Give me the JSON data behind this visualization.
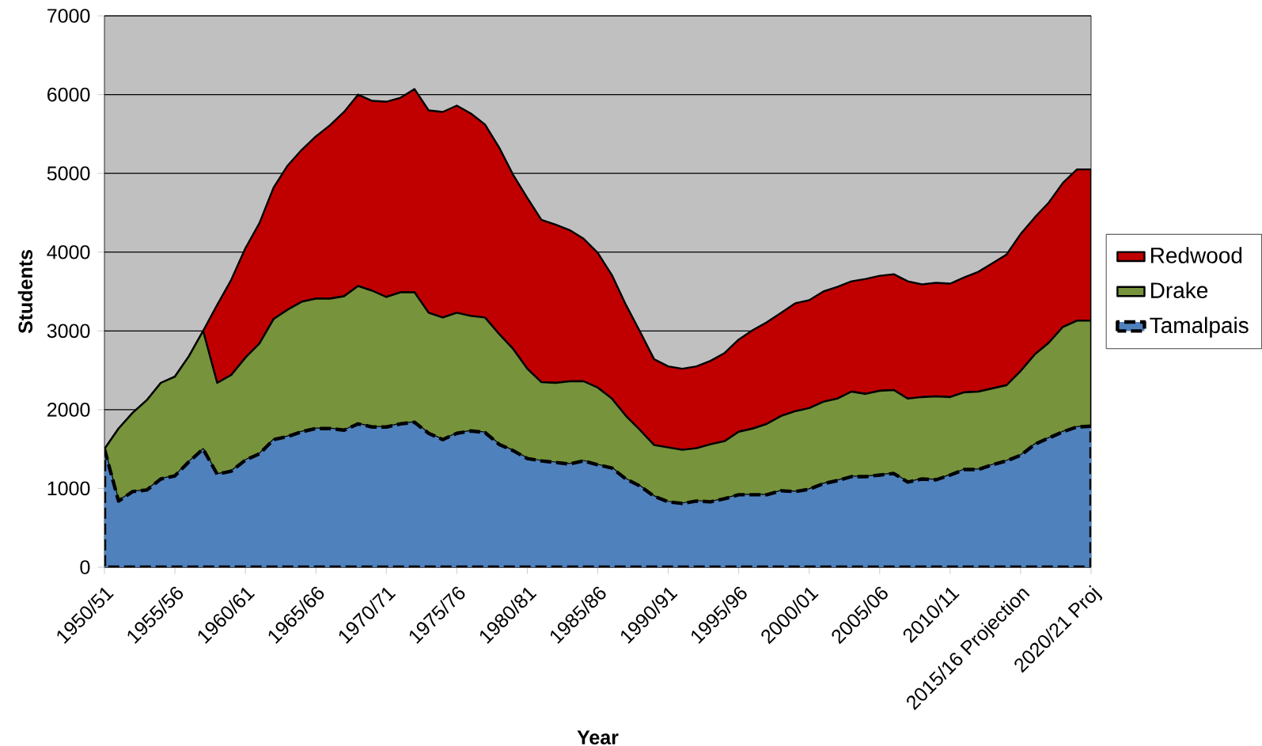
{
  "chart_data": {
    "type": "area",
    "xlabel": "Year",
    "ylabel": "Students",
    "categories": [
      "1950/51",
      null,
      null,
      null,
      null,
      "1955/56",
      null,
      null,
      null,
      null,
      "1960/61",
      null,
      null,
      null,
      null,
      "1965/66",
      null,
      null,
      null,
      null,
      "1970/71",
      null,
      null,
      null,
      null,
      "1975/76",
      null,
      null,
      null,
      null,
      "1980/81",
      null,
      null,
      null,
      null,
      "1985/86",
      null,
      null,
      null,
      null,
      "1990/91",
      null,
      null,
      null,
      null,
      "1995/96",
      null,
      null,
      null,
      null,
      "2000/01",
      null,
      null,
      null,
      null,
      "2005/06",
      null,
      null,
      null,
      null,
      "2010/11",
      null,
      null,
      null,
      null,
      "2015/16 Projection",
      null,
      null,
      null,
      null,
      "2020/21 Proj"
    ],
    "stacked": true,
    "ylim": [
      0,
      7000
    ],
    "yticks": [
      0,
      1000,
      2000,
      3000,
      4000,
      5000,
      6000,
      7000
    ],
    "grid": "y",
    "legend": "right",
    "series": [
      {
        "name": "Tamalpais",
        "color": "#4f81bd",
        "line_style": "dashed",
        "values": [
          1500,
          840,
          960,
          980,
          1120,
          1160,
          1340,
          1500,
          1180,
          1220,
          1360,
          1440,
          1620,
          1660,
          1720,
          1760,
          1760,
          1740,
          1820,
          1780,
          1780,
          1820,
          1840,
          1700,
          1620,
          1700,
          1730,
          1710,
          1560,
          1480,
          1380,
          1350,
          1330,
          1310,
          1350,
          1300,
          1260,
          1120,
          1030,
          900,
          830,
          810,
          840,
          830,
          870,
          920,
          920,
          920,
          970,
          960,
          990,
          1060,
          1100,
          1150,
          1150,
          1170,
          1190,
          1080,
          1120,
          1110,
          1170,
          1240,
          1240,
          1300,
          1350,
          1420,
          1560,
          1640,
          1720,
          1780,
          1790
        ]
      },
      {
        "name": "Drake",
        "color": "#77933c",
        "line_style": "solid",
        "values": [
          0,
          920,
          1000,
          1140,
          1220,
          1260,
          1340,
          1500,
          1160,
          1220,
          1300,
          1400,
          1530,
          1610,
          1650,
          1650,
          1650,
          1700,
          1750,
          1730,
          1650,
          1670,
          1650,
          1530,
          1550,
          1530,
          1460,
          1460,
          1400,
          1290,
          1140,
          1000,
          1010,
          1050,
          1010,
          980,
          880,
          800,
          710,
          650,
          690,
          680,
          670,
          730,
          730,
          800,
          840,
          900,
          950,
          1020,
          1030,
          1040,
          1040,
          1080,
          1050,
          1070,
          1060,
          1060,
          1040,
          1060,
          990,
          980,
          990,
          970,
          960,
          1070,
          1140,
          1210,
          1330,
          1350,
          1340
        ]
      },
      {
        "name": "Redwood",
        "color": "#c00000",
        "line_style": "solid",
        "values": [
          0,
          0,
          0,
          0,
          0,
          0,
          0,
          0,
          990,
          1210,
          1390,
          1530,
          1670,
          1830,
          1930,
          2060,
          2200,
          2340,
          2430,
          2410,
          2480,
          2470,
          2580,
          2570,
          2610,
          2630,
          2570,
          2450,
          2370,
          2210,
          2170,
          2060,
          2010,
          1920,
          1810,
          1710,
          1570,
          1410,
          1250,
          1090,
          1030,
          1030,
          1040,
          1060,
          1120,
          1170,
          1250,
          1290,
          1310,
          1370,
          1370,
          1400,
          1420,
          1400,
          1460,
          1460,
          1470,
          1490,
          1430,
          1440,
          1440,
          1460,
          1520,
          1590,
          1660,
          1740,
          1740,
          1780,
          1830,
          1920,
          1920
        ]
      }
    ]
  }
}
